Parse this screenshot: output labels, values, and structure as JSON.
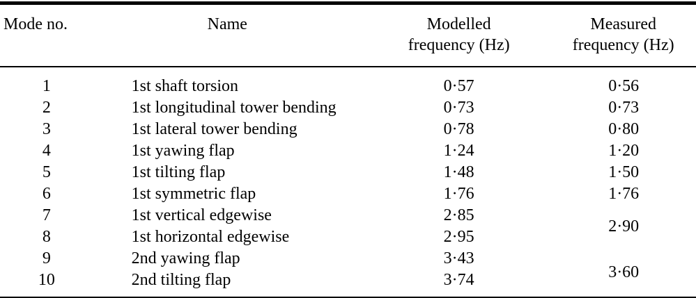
{
  "table": {
    "header": {
      "mode_no": "Mode no.",
      "name": "Name",
      "modelled_line1": "Modelled",
      "modelled_line2": "frequency (Hz)",
      "measured_line1": "Measured",
      "measured_line2": "frequency (Hz)"
    },
    "rows": [
      {
        "mode": "1",
        "name": "1st shaft torsion",
        "modelled": "0·57",
        "measured": "0·56"
      },
      {
        "mode": "2",
        "name": "1st longitudinal tower bending",
        "modelled": "0·73",
        "measured": "0·73"
      },
      {
        "mode": "3",
        "name": "1st lateral tower bending",
        "modelled": "0·78",
        "measured": "0·80"
      },
      {
        "mode": "4",
        "name": "1st yawing flap",
        "modelled": "1·24",
        "measured": "1·20"
      },
      {
        "mode": "5",
        "name": "1st tilting flap",
        "modelled": "1·48",
        "measured": "1·50"
      },
      {
        "mode": "6",
        "name": "1st symmetric flap",
        "modelled": "1·76",
        "measured": "1·76"
      },
      {
        "mode": "7",
        "name": "1st vertical edgewise",
        "modelled": "2·85"
      },
      {
        "mode": "8",
        "name": "1st horizontal edgewise",
        "modelled": "2·95"
      },
      {
        "mode": "9",
        "name": "2nd yawing flap",
        "modelled": "3·43"
      },
      {
        "mode": "10",
        "name": "2nd tilting flap",
        "modelled": "3·74"
      }
    ],
    "merged_measured": [
      {
        "spans_modes": "7–8",
        "value": "2·90"
      },
      {
        "spans_modes": "9–10",
        "value": "3·60"
      }
    ]
  },
  "colors": {
    "text": "#000000",
    "rule": "#000000",
    "background": "#ffffff"
  }
}
